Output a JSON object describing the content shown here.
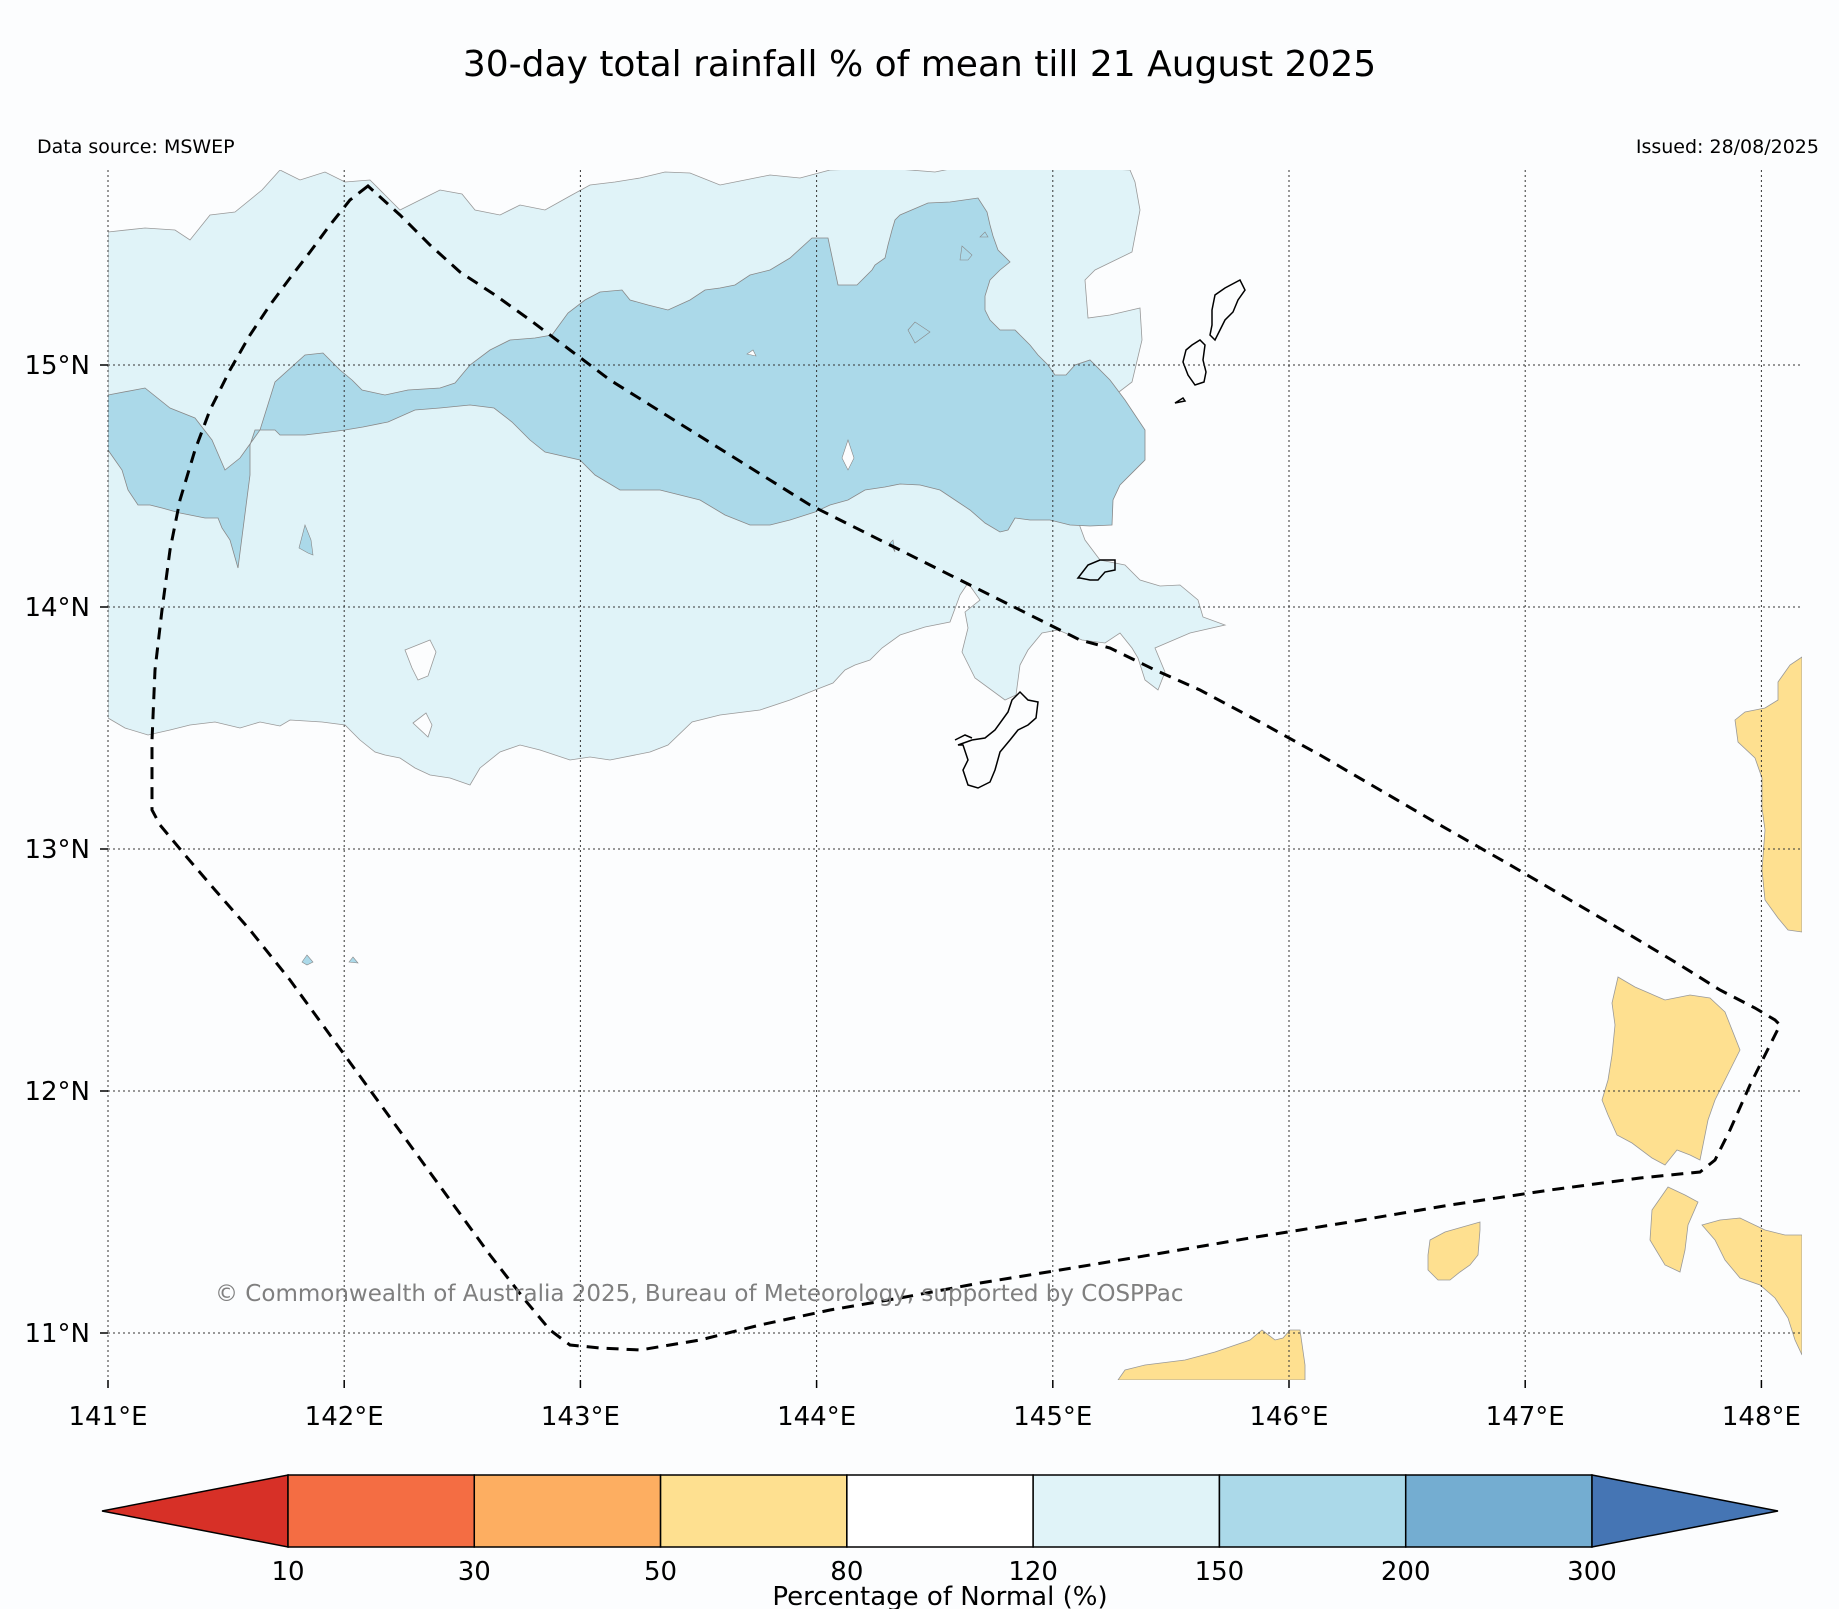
{
  "title": "30-day total rainfall % of mean till 21 August 2025",
  "data_source": "Data source: MSWEP",
  "issued": "Issued: 28/08/2025",
  "copyright": "© Commonwealth of Australia 2025, Bureau of Meteorology, supported by COSPPac",
  "map": {
    "lon_range": [
      141.0,
      148.2
    ],
    "lat_range": [
      10.85,
      15.85
    ],
    "lon_ticks": [
      {
        "value": 141,
        "label": "141°E"
      },
      {
        "value": 142,
        "label": "142°E"
      },
      {
        "value": 143,
        "label": "143°E"
      },
      {
        "value": 144,
        "label": "144°E"
      },
      {
        "value": 145,
        "label": "145°E"
      },
      {
        "value": 146,
        "label": "146°E"
      },
      {
        "value": 147,
        "label": "147°E"
      },
      {
        "value": 148,
        "label": "148°E"
      }
    ],
    "lat_ticks": [
      {
        "value": 15,
        "label": "15°N"
      },
      {
        "value": 14,
        "label": "14°N"
      },
      {
        "value": 13,
        "label": "13°N"
      },
      {
        "value": 12,
        "label": "12°N"
      },
      {
        "value": 11,
        "label": "11°N"
      }
    ],
    "gridlines": true
  },
  "colorbar": {
    "label": "Percentage of Normal (%)",
    "ticks": [
      "10",
      "30",
      "50",
      "80",
      "120",
      "150",
      "200",
      "300"
    ],
    "under_color": "#d73027",
    "over_color": "#4575b4",
    "bins": [
      {
        "range": "10-30",
        "color": "#f46d43"
      },
      {
        "range": "30-50",
        "color": "#fdae61"
      },
      {
        "range": "50-80",
        "color": "#fee090"
      },
      {
        "range": "80-120",
        "color": "#ffffff"
      },
      {
        "range": "120-150",
        "color": "#e0f3f8"
      },
      {
        "range": "150-200",
        "color": "#abd9e9"
      },
      {
        "range": "200-300",
        "color": "#74add1"
      }
    ]
  },
  "colors": {
    "wet_light": "#e0f3f8",
    "wet_medium": "#abd9e9",
    "dry": "#fee090",
    "boundary": "#000000",
    "grid": "#333333"
  }
}
